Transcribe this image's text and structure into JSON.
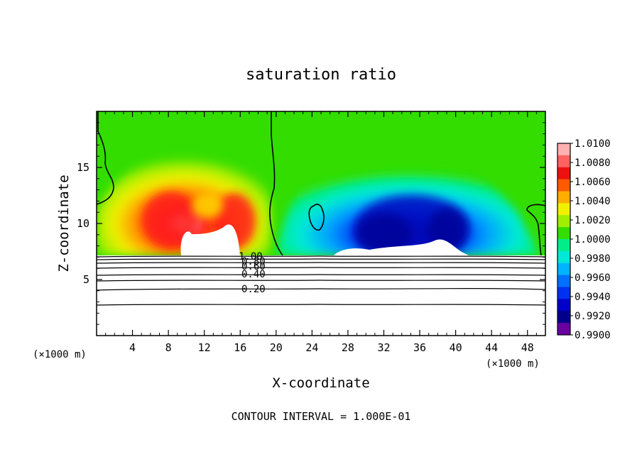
{
  "chart_data": {
    "type": "heatmap",
    "title": "saturation ratio",
    "xlabel": "X-coordinate",
    "ylabel": "Z-coordinate",
    "x_unit": "(×1000 m)",
    "y_unit": "(×1000 m)",
    "xlim": [
      0,
      50
    ],
    "ylim": [
      0,
      20
    ],
    "x_ticks": [
      4,
      8,
      12,
      16,
      20,
      24,
      28,
      32,
      36,
      40,
      44,
      48
    ],
    "y_ticks": [
      5,
      10,
      15
    ],
    "footer": "CONTOUR INTERVAL = 1.000E-01",
    "colorbar": {
      "levels": [
        "1.0100",
        "1.0080",
        "1.0060",
        "1.0040",
        "1.0020",
        "1.0000",
        "0.9980",
        "0.9960",
        "0.9940",
        "0.9920",
        "0.9900"
      ],
      "colors": [
        "#ffb0b0",
        "#ff6060",
        "#ee1010",
        "#ff5a00",
        "#ffae00",
        "#f0f000",
        "#a0ee00",
        "#33dd00",
        "#00ee88",
        "#00e8d8",
        "#00b4ff",
        "#0070ff",
        "#0030f0",
        "#0000c8",
        "#00008a",
        "#6a00a0"
      ]
    },
    "contour_labels": [
      "1.00",
      "0.80",
      "0.60",
      "0.40",
      "0.20"
    ]
  }
}
